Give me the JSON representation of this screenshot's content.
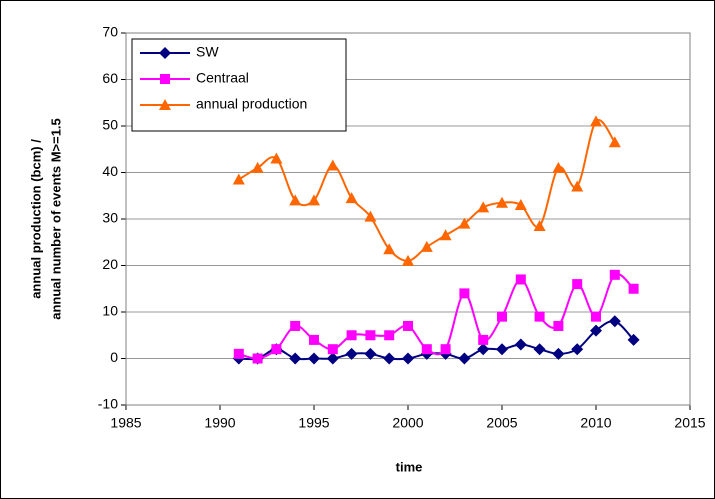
{
  "chart_data": {
    "type": "line",
    "x_label": "time",
    "y_label": [
      "annual production (bcm) /",
      "annual number of events M>=1.5"
    ],
    "x": [
      1991,
      1992,
      1993,
      1994,
      1995,
      1996,
      1997,
      1998,
      1999,
      2000,
      2001,
      2002,
      2003,
      2004,
      2005,
      2006,
      2007,
      2008,
      2009,
      2010,
      2011,
      2012
    ],
    "series": [
      {
        "name": "SW",
        "color": "#000080",
        "marker": "diamond",
        "values": [
          0,
          0,
          2,
          0,
          0,
          0,
          1,
          1,
          0,
          0,
          1,
          1,
          0,
          2,
          2,
          3,
          2,
          1,
          2,
          6,
          8,
          4
        ]
      },
      {
        "name": "Centraal",
        "color": "#ff00ff",
        "marker": "square",
        "values": [
          1,
          0,
          2,
          7,
          4,
          2,
          5,
          5,
          5,
          7,
          2,
          2,
          14,
          4,
          9,
          17,
          9,
          7,
          16,
          9,
          18,
          15
        ]
      },
      {
        "name": "annual production",
        "color": "#ff6600",
        "marker": "triangle",
        "values": [
          38.5,
          41,
          43,
          34,
          34,
          41.5,
          34.5,
          30.5,
          23.5,
          21,
          24,
          26.5,
          29,
          32.5,
          33.5,
          33,
          28.5,
          41,
          37,
          51,
          46.5,
          null
        ]
      }
    ],
    "xlim": [
      1985,
      2015
    ],
    "xticks": [
      1985,
      1990,
      1995,
      2000,
      2005,
      2010,
      2015
    ],
    "ylim": [
      -10,
      70
    ],
    "yticks": [
      -10,
      0,
      10,
      20,
      30,
      40,
      50,
      60,
      70
    ],
    "grid": true,
    "legend": "top-left"
  }
}
